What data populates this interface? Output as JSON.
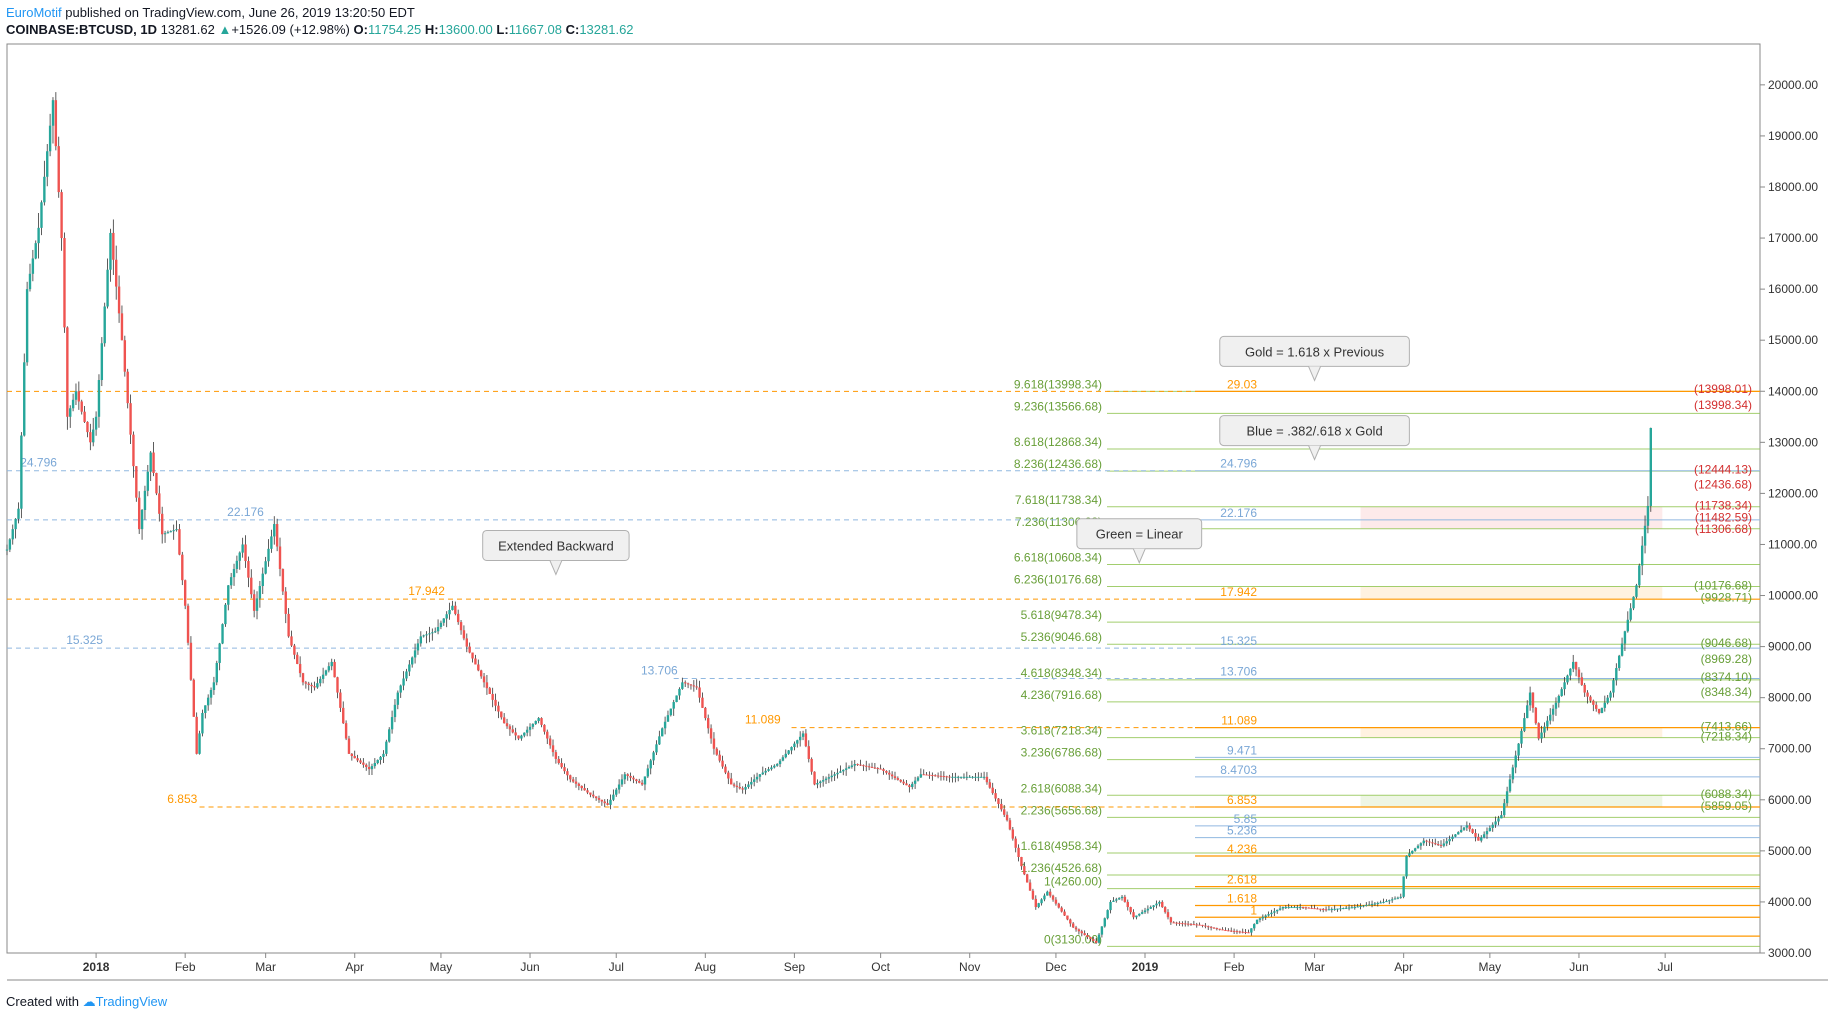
{
  "header": {
    "author": "EuroMotif",
    "published": "published on TradingView.com, June 26, 2019 13:20:50 EDT",
    "symbol": "COINBASE:BTCUSD, 1D",
    "last": "13281.62",
    "change_arrow": "▲",
    "change": "+1526.09 (+12.98%)",
    "open_label": "O:",
    "open": "11754.25",
    "high_label": "H:",
    "high": "13600.00",
    "low_label": "L:",
    "low": "11667.08",
    "close_label": "C:",
    "close": "13281.62"
  },
  "footer": {
    "created_with": "Created with",
    "brand": "TradingView"
  },
  "colors": {
    "up": "#26a69a",
    "down": "#ef5350",
    "green_line": "#8bc34a",
    "gold": "#ff9800",
    "blue": "#90b8e0",
    "red_text": "#d32f2f"
  },
  "chart_data": {
    "type": "candlestick",
    "y_axis": {
      "min": 3000,
      "max": 20800,
      "ticks": [
        3000,
        4000,
        5000,
        6000,
        7000,
        8000,
        9000,
        10000,
        11000,
        12000,
        13000,
        14000,
        15000,
        16000,
        17000,
        18000,
        19000,
        20000
      ],
      "tick_labels": [
        "3000.00",
        "4000.00",
        "5000.00",
        "6000.00",
        "7000.00",
        "8000.00",
        "9000.00",
        "10000.00",
        "11000.00",
        "12000.00",
        "13000.00",
        "14000.00",
        "15000.00",
        "16000.00",
        "17000.00",
        "18000.00",
        "19000.00",
        "20000.00"
      ]
    },
    "x_axis": {
      "start": "2017-12-01",
      "end": "2019-08-03",
      "ticks": [
        {
          "date": "2018-01-01",
          "label": "2018",
          "bold": true
        },
        {
          "date": "2018-02-01",
          "label": "Feb"
        },
        {
          "date": "2018-03-01",
          "label": "Mar"
        },
        {
          "date": "2018-04-01",
          "label": "Apr"
        },
        {
          "date": "2018-05-01",
          "label": "May"
        },
        {
          "date": "2018-06-01",
          "label": "Jun"
        },
        {
          "date": "2018-07-01",
          "label": "Jul"
        },
        {
          "date": "2018-08-01",
          "label": "Aug"
        },
        {
          "date": "2018-09-01",
          "label": "Sep"
        },
        {
          "date": "2018-10-01",
          "label": "Oct"
        },
        {
          "date": "2018-11-01",
          "label": "Nov"
        },
        {
          "date": "2018-12-01",
          "label": "Dec"
        },
        {
          "date": "2019-01-01",
          "label": "2019",
          "bold": true
        },
        {
          "date": "2019-02-01",
          "label": "Feb"
        },
        {
          "date": "2019-03-01",
          "label": "Mar"
        },
        {
          "date": "2019-04-01",
          "label": "Apr"
        },
        {
          "date": "2019-05-01",
          "label": "May"
        },
        {
          "date": "2019-06-01",
          "label": "Jun"
        },
        {
          "date": "2019-07-01",
          "label": "Jul"
        }
      ]
    },
    "price_path": [
      [
        "2017-12-01",
        10900
      ],
      [
        "2017-12-05",
        11700
      ],
      [
        "2017-12-08",
        16000
      ],
      [
        "2017-12-12",
        17200
      ],
      [
        "2017-12-17",
        19700
      ],
      [
        "2017-12-20",
        17000
      ],
      [
        "2017-12-22",
        13500
      ],
      [
        "2017-12-25",
        14000
      ],
      [
        "2017-12-30",
        13000
      ],
      [
        "2018-01-01",
        13500
      ],
      [
        "2018-01-06",
        17100
      ],
      [
        "2018-01-10",
        15000
      ],
      [
        "2018-01-16",
        11300
      ],
      [
        "2018-01-20",
        12800
      ],
      [
        "2018-01-24",
        11200
      ],
      [
        "2018-01-29",
        11300
      ],
      [
        "2018-02-01",
        9800
      ],
      [
        "2018-02-05",
        6900
      ],
      [
        "2018-02-07",
        7700
      ],
      [
        "2018-02-11",
        8300
      ],
      [
        "2018-02-16",
        10200
      ],
      [
        "2018-02-21",
        11000
      ],
      [
        "2018-02-25",
        9700
      ],
      [
        "2018-03-04",
        11400
      ],
      [
        "2018-03-09",
        9200
      ],
      [
        "2018-03-14",
        8300
      ],
      [
        "2018-03-18",
        8200
      ],
      [
        "2018-03-24",
        8700
      ],
      [
        "2018-03-30",
        6900
      ],
      [
        "2018-04-06",
        6600
      ],
      [
        "2018-04-11",
        6900
      ],
      [
        "2018-04-16",
        8100
      ],
      [
        "2018-04-24",
        9200
      ],
      [
        "2018-04-29",
        9300
      ],
      [
        "2018-05-05",
        9800
      ],
      [
        "2018-05-10",
        9000
      ],
      [
        "2018-05-16",
        8300
      ],
      [
        "2018-05-23",
        7500
      ],
      [
        "2018-05-28",
        7200
      ],
      [
        "2018-06-04",
        7600
      ],
      [
        "2018-06-10",
        6800
      ],
      [
        "2018-06-15",
        6400
      ],
      [
        "2018-06-22",
        6100
      ],
      [
        "2018-06-28",
        5900
      ],
      [
        "2018-07-04",
        6500
      ],
      [
        "2018-07-10",
        6300
      ],
      [
        "2018-07-17",
        7400
      ],
      [
        "2018-07-24",
        8300
      ],
      [
        "2018-07-29",
        8200
      ],
      [
        "2018-08-04",
        7000
      ],
      [
        "2018-08-10",
        6300
      ],
      [
        "2018-08-14",
        6200
      ],
      [
        "2018-08-20",
        6500
      ],
      [
        "2018-08-26",
        6700
      ],
      [
        "2018-09-04",
        7300
      ],
      [
        "2018-09-08",
        6300
      ],
      [
        "2018-09-15",
        6500
      ],
      [
        "2018-09-22",
        6700
      ],
      [
        "2018-10-01",
        6600
      ],
      [
        "2018-10-11",
        6250
      ],
      [
        "2018-10-15",
        6500
      ],
      [
        "2018-10-25",
        6450
      ],
      [
        "2018-11-06",
        6450
      ],
      [
        "2018-11-14",
        5600
      ],
      [
        "2018-11-19",
        4700
      ],
      [
        "2018-11-24",
        3900
      ],
      [
        "2018-11-28",
        4200
      ],
      [
        "2018-12-07",
        3500
      ],
      [
        "2018-12-15",
        3200
      ],
      [
        "2018-12-20",
        4000
      ],
      [
        "2018-12-24",
        4100
      ],
      [
        "2018-12-28",
        3700
      ],
      [
        "2019-01-06",
        4000
      ],
      [
        "2019-01-10",
        3600
      ],
      [
        "2019-01-20",
        3550
      ],
      [
        "2019-01-28",
        3450
      ],
      [
        "2019-02-06",
        3400
      ],
      [
        "2019-02-09",
        3650
      ],
      [
        "2019-02-18",
        3900
      ],
      [
        "2019-02-24",
        3900
      ],
      [
        "2019-03-05",
        3850
      ],
      [
        "2019-03-15",
        3900
      ],
      [
        "2019-03-25",
        4000
      ],
      [
        "2019-03-31",
        4100
      ],
      [
        "2019-04-02",
        4900
      ],
      [
        "2019-04-08",
        5200
      ],
      [
        "2019-04-14",
        5100
      ],
      [
        "2019-04-23",
        5500
      ],
      [
        "2019-04-27",
        5200
      ],
      [
        "2019-05-05",
        5700
      ],
      [
        "2019-05-11",
        7100
      ],
      [
        "2019-05-15",
        8100
      ],
      [
        "2019-05-18",
        7200
      ],
      [
        "2019-05-24",
        7900
      ],
      [
        "2019-05-30",
        8700
      ],
      [
        "2019-06-03",
        8100
      ],
      [
        "2019-06-08",
        7700
      ],
      [
        "2019-06-12",
        8100
      ],
      [
        "2019-06-17",
        9300
      ],
      [
        "2019-06-21",
        10200
      ],
      [
        "2019-06-25",
        11754
      ],
      [
        "2019-06-26",
        13281
      ]
    ],
    "candle_span": [
      "2017-12-01",
      "2019-06-26"
    ],
    "fib_levels_left": [
      {
        "label": "9.618(13998.34)",
        "price": 13998.34
      },
      {
        "label": "9.236(13566.68)",
        "price": 13566.68
      },
      {
        "label": "8.618(12868.34)",
        "price": 12868.34
      },
      {
        "label": "8.236(12436.68)",
        "price": 12436.68
      },
      {
        "label": "7.618(11738.34)",
        "price": 11738.34
      },
      {
        "label": "7.236(11306.68)",
        "price": 11306.68
      },
      {
        "label": "6.618(10608.34)",
        "price": 10608.34
      },
      {
        "label": "6.236(10176.68)",
        "price": 10176.68
      },
      {
        "label": "5.618(9478.34)",
        "price": 9478.34
      },
      {
        "label": "5.236(9046.68)",
        "price": 9046.68
      },
      {
        "label": "4.618(8348.34)",
        "price": 8348.34
      },
      {
        "label": "4.236(7916.68)",
        "price": 7916.68
      },
      {
        "label": "3.618(7218.34)",
        "price": 7218.34
      },
      {
        "label": "3.236(6786.68)",
        "price": 6786.68
      },
      {
        "label": "2.618(6088.34)",
        "price": 6088.34
      },
      {
        "label": "2.236(5656.68)",
        "price": 5656.68
      },
      {
        "label": "1.618(4958.34)",
        "price": 4958.34
      },
      {
        "label": "1.236(4526.68)",
        "price": 4526.68
      },
      {
        "label": "1(4260.00)",
        "price": 4260.0
      },
      {
        "label": "0(3130.00)",
        "price": 3130.0
      }
    ],
    "gold_levels": [
      {
        "label": "29.03",
        "price": 13998.34
      },
      {
        "label": "17.942",
        "price": 9928.71
      },
      {
        "label": "11.089",
        "price": 7413.66
      },
      {
        "label": "6.853",
        "price": 5859.05
      },
      {
        "label": "4.236",
        "price": 4900
      },
      {
        "label": "2.618",
        "price": 4300
      },
      {
        "label": "1.618",
        "price": 3930
      },
      {
        "label": "1",
        "price": 3700
      },
      {
        "label": "",
        "price": 3330
      }
    ],
    "blue_levels": [
      {
        "label": "24.796",
        "price": 12444.13
      },
      {
        "label": "22.176",
        "price": 11482.59
      },
      {
        "label": "15.325",
        "price": 8969.28
      },
      {
        "label": "13.706",
        "price": 8374.1
      },
      {
        "label": "9.471",
        "price": 6830
      },
      {
        "label": "8.4703",
        "price": 6450
      },
      {
        "label": "5.85",
        "price": 5490
      },
      {
        "label": "5.236",
        "price": 5260
      }
    ],
    "extended_backward": [
      {
        "label": "24.796",
        "price": 12444.13,
        "x_start": "2017-12-01",
        "label_date": "2017-12-12"
      },
      {
        "label": "22.176",
        "price": 11482.59,
        "x_start": "2017-12-01",
        "label_date": "2018-02-22"
      },
      {
        "label": "15.325",
        "price": 8969.28,
        "x_start": "2017-12-01",
        "label_date": "2017-12-28"
      },
      {
        "label": "17.942",
        "price": 9928.71,
        "x_start": "2017-12-01",
        "label_date": "2018-04-26"
      },
      {
        "label": "13.706",
        "price": 8374.1,
        "x_start": "2018-07-21",
        "label_date": "2018-07-16"
      },
      {
        "label": "11.089",
        "price": 7413.66,
        "x_start": "2018-08-31",
        "label_date": "2018-08-21"
      },
      {
        "label": "6.853",
        "price": 5859.05,
        "x_start": "2018-02-06",
        "label_date": "2018-01-31"
      },
      {
        "label": "",
        "price": 13998.34,
        "x_start": "2017-12-01",
        "label_date": ""
      }
    ],
    "right_price_labels": [
      {
        "text": "(13998.01)",
        "price": 14040,
        "color": "red"
      },
      {
        "text": "(13998.34)",
        "price": 13730,
        "color": "red"
      },
      {
        "text": "(12444.13)",
        "price": 12470,
        "color": "red"
      },
      {
        "text": "(12436.68)",
        "price": 12170,
        "color": "red"
      },
      {
        "text": "(11738.34)",
        "price": 11765,
        "color": "red"
      },
      {
        "text": "(11482.59)",
        "price": 11530,
        "color": "red"
      },
      {
        "text": "(11306.68)",
        "price": 11300,
        "color": "red"
      },
      {
        "text": "(10176.68)",
        "price": 10200,
        "color": "green"
      },
      {
        "text": "(9928.71)",
        "price": 9960,
        "color": "green"
      },
      {
        "text": "(9046.68)",
        "price": 9070,
        "color": "green"
      },
      {
        "text": "(8969.28)",
        "price": 8760,
        "color": "green"
      },
      {
        "text": "(8374.10)",
        "price": 8400,
        "color": "green"
      },
      {
        "text": "(8348.34)",
        "price": 8110,
        "color": "green"
      },
      {
        "text": "(7413.66)",
        "price": 7440,
        "color": "green"
      },
      {
        "text": "(7218.34)",
        "price": 7240,
        "color": "green"
      },
      {
        "text": "(6088.34)",
        "price": 6110,
        "color": "green"
      },
      {
        "text": "(5859.05)",
        "price": 5880,
        "color": "green"
      }
    ],
    "zones": [
      {
        "from_date": "2019-03-17",
        "to_date": "2019-06-30",
        "low": 11306.68,
        "high": 11738.34,
        "color": "red"
      },
      {
        "from_date": "2019-03-17",
        "to_date": "2019-06-30",
        "low": 9928.71,
        "high": 10176.68,
        "color": "orange"
      },
      {
        "from_date": "2019-03-17",
        "to_date": "2019-06-30",
        "low": 7218.34,
        "high": 7413.66,
        "color": "orange"
      },
      {
        "from_date": "2019-03-17",
        "to_date": "2019-06-30",
        "low": 5859.05,
        "high": 6088.34,
        "color": "green"
      }
    ],
    "callouts": [
      {
        "text": "Gold = 1.618 x Previous",
        "date": "2019-03-01",
        "price": 14780
      },
      {
        "text": "Blue = .382/.618 x Gold",
        "date": "2019-03-01",
        "price": 13230
      },
      {
        "text": "Green = Linear",
        "date": "2018-12-30",
        "price": 11210
      },
      {
        "text": "Extended Backward",
        "date": "2018-06-10",
        "price": 10980
      }
    ]
  }
}
